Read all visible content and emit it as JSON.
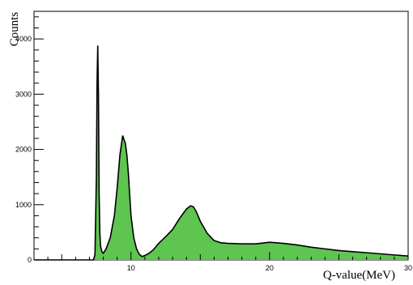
{
  "chart_data": {
    "type": "area",
    "title": "",
    "xlabel": "Q-value(MeV)",
    "ylabel": "Counts",
    "xlim": [
      3,
      30
    ],
    "ylim": [
      0,
      4500
    ],
    "x_ticks": [
      10,
      20,
      30
    ],
    "y_ticks": [
      0,
      1000,
      2000,
      3000,
      4000
    ],
    "fill_color": "#5ec550",
    "line_color": "#000000",
    "grid": false,
    "series": [
      {
        "x": [
          3,
          4,
          5,
          6,
          7,
          7.3,
          7.4,
          7.5,
          7.55,
          7.6,
          7.65,
          7.7,
          7.75,
          7.8,
          7.9,
          8.0,
          8.2,
          8.5,
          8.8,
          9.0,
          9.2,
          9.4,
          9.6,
          9.7,
          9.8,
          9.9,
          10.0,
          10.2,
          10.4,
          10.6,
          10.8,
          11.0,
          11.3,
          11.6,
          12.0,
          12.5,
          13.0,
          13.5,
          14.0,
          14.3,
          14.5,
          14.7,
          15.0,
          15.5,
          16.0,
          16.5,
          17.0,
          18.0,
          19.0,
          20.0,
          21.0,
          22.0,
          23.0,
          24.0,
          25.0,
          26.0,
          27.0,
          28.0,
          29.0,
          30.0
        ],
        "y": [
          0,
          0,
          0,
          0,
          0,
          0,
          100,
          1500,
          3200,
          3880,
          3000,
          1200,
          500,
          250,
          150,
          120,
          200,
          400,
          800,
          1300,
          1900,
          2250,
          2100,
          1900,
          1600,
          1200,
          800,
          400,
          200,
          100,
          60,
          80,
          120,
          180,
          300,
          420,
          550,
          750,
          920,
          980,
          960,
          880,
          700,
          480,
          350,
          310,
          300,
          290,
          290,
          320,
          300,
          270,
          230,
          200,
          170,
          150,
          130,
          110,
          90,
          70
        ]
      }
    ]
  }
}
